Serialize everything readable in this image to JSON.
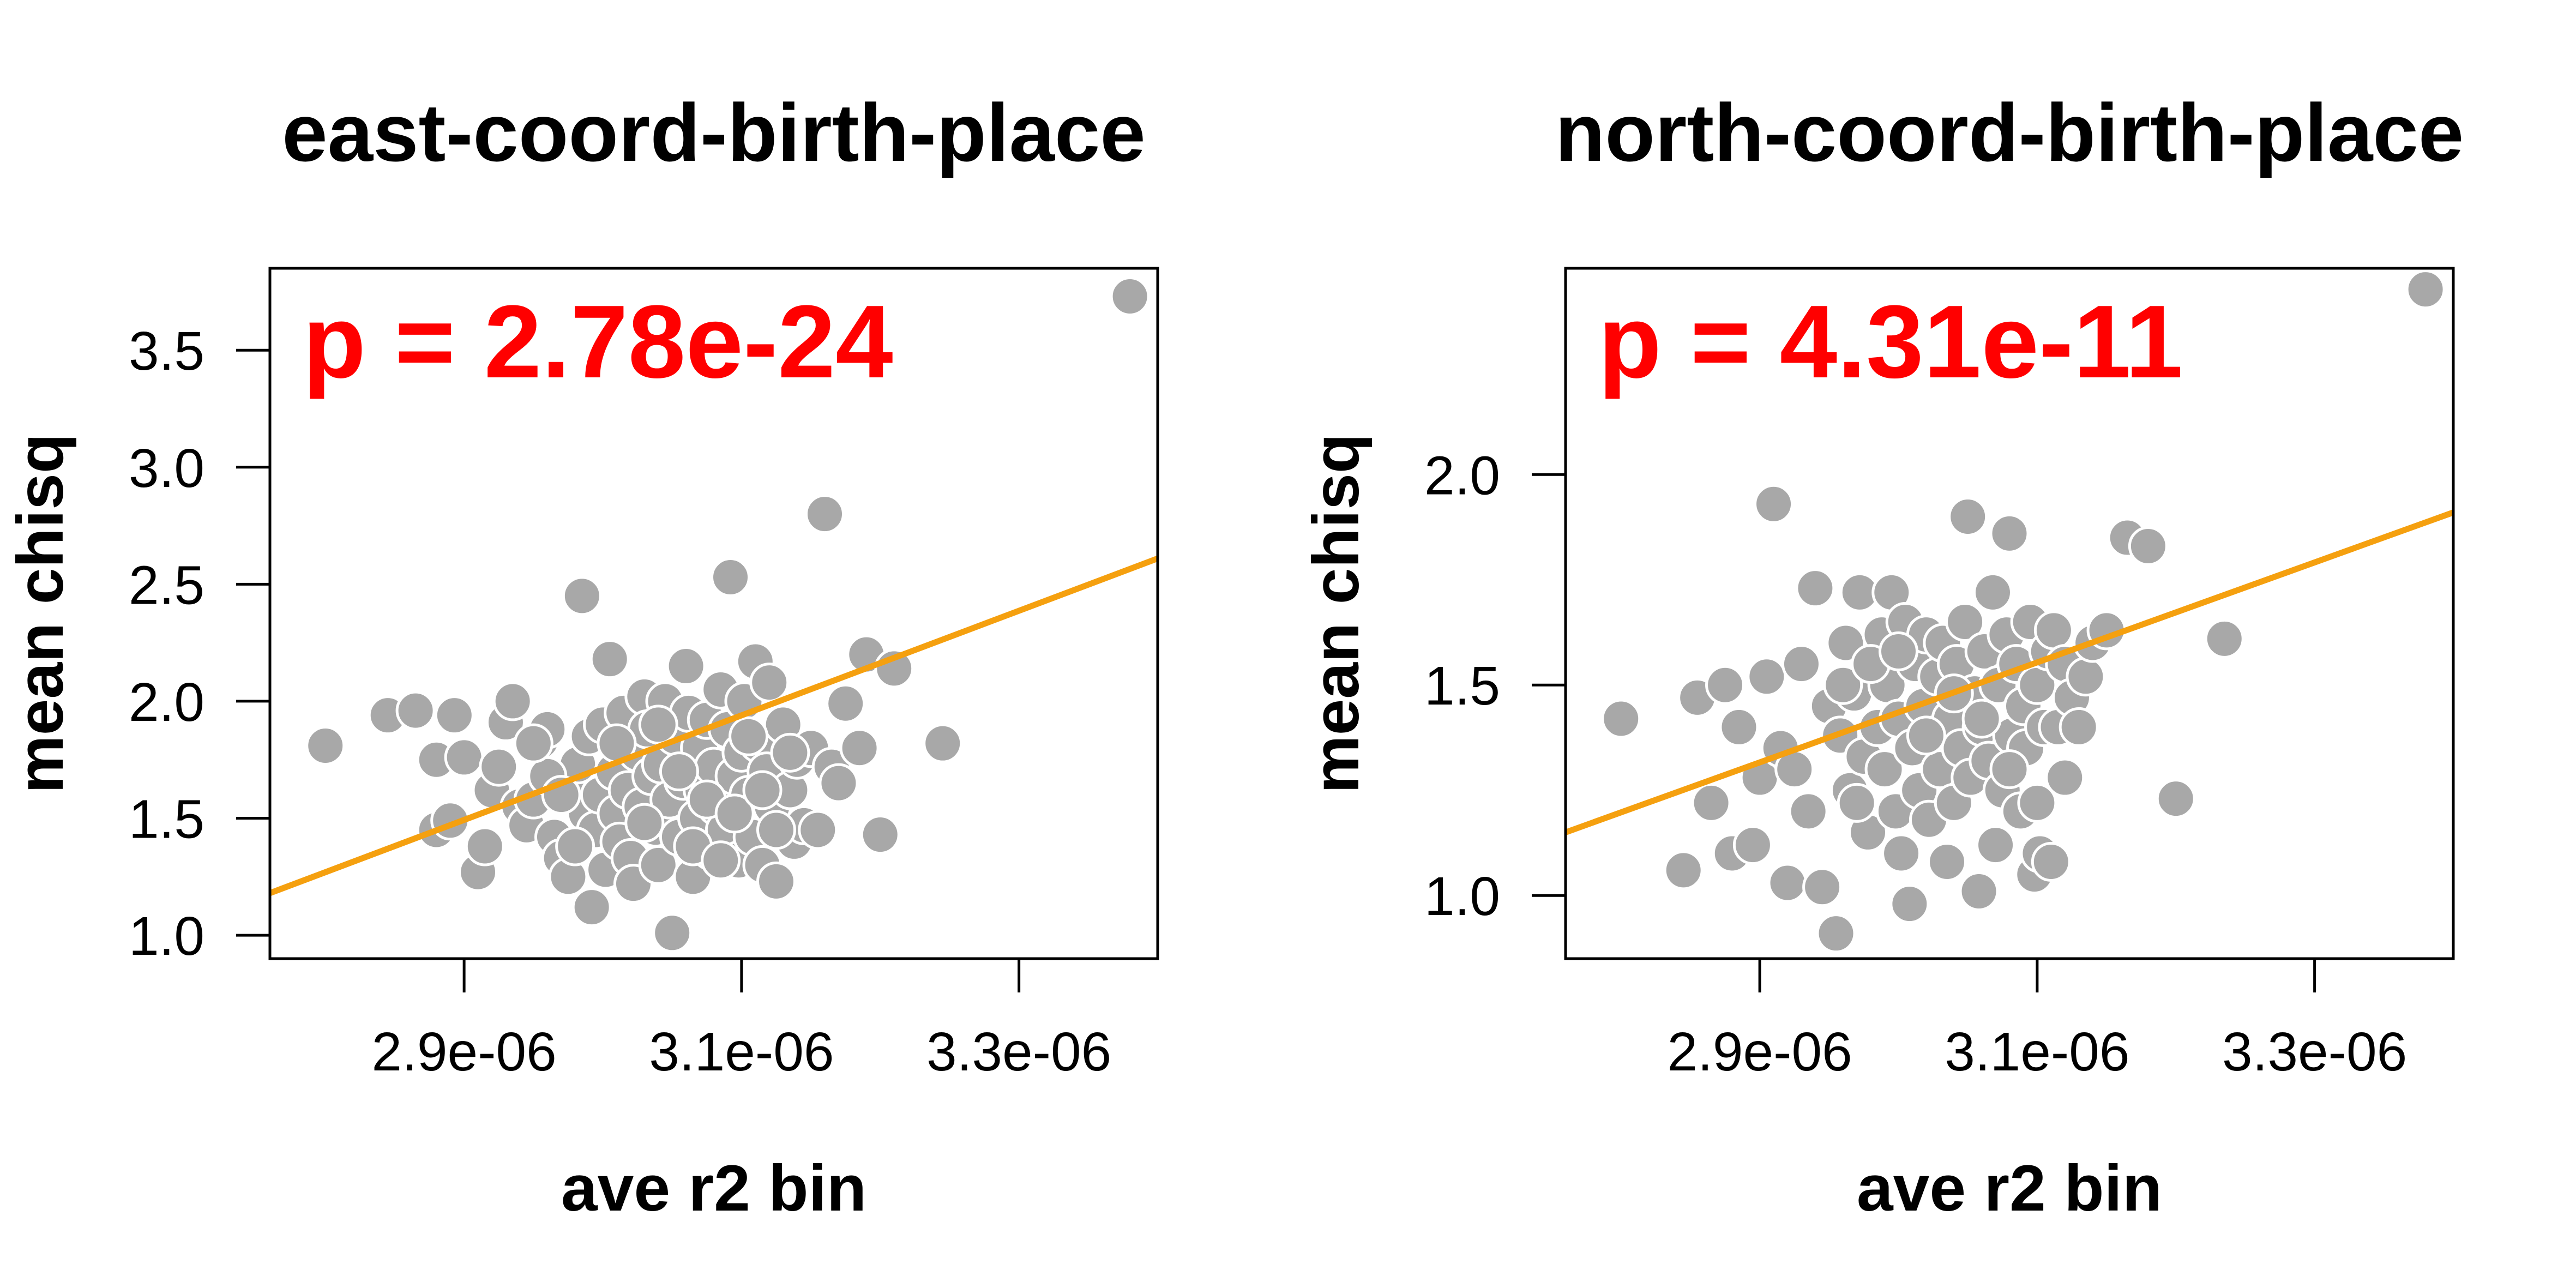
{
  "colors": {
    "points": "#a8a8a8",
    "fit_line": "#f5a00f",
    "p_value": "#ff0000"
  },
  "chart_data": [
    {
      "type": "scatter",
      "title": "east-coord-birth-place",
      "xlabel": "ave r2 bin",
      "ylabel": "mean chisq",
      "annotation": "p = 2.78e-24",
      "xlim": [
        2.76e-06,
        3.4e-06
      ],
      "ylim": [
        0.9,
        3.85
      ],
      "xticks": [
        2.9e-06,
        3.1e-06,
        3.3e-06
      ],
      "xtick_labels": [
        "2.9e-06",
        "3.1e-06",
        "3.3e-06"
      ],
      "yticks": [
        1.0,
        1.5,
        2.0,
        2.5,
        3.0,
        3.5
      ],
      "ytick_labels": [
        "1.0",
        "1.5",
        "2.0",
        "2.5",
        "3.0",
        "3.5"
      ],
      "grid": false,
      "fit_line": {
        "x": [
          2.76e-06,
          3.4e-06
        ],
        "y": [
          1.18,
          2.61
        ]
      },
      "points": [
        [
          2.8e-06,
          1.81
        ],
        [
          2.845e-06,
          1.94
        ],
        [
          2.865e-06,
          1.96
        ],
        [
          2.88e-06,
          1.75
        ],
        [
          2.893e-06,
          1.94
        ],
        [
          2.9e-06,
          1.76
        ],
        [
          2.88e-06,
          1.45
        ],
        [
          2.89e-06,
          1.49
        ],
        [
          2.91e-06,
          1.27
        ],
        [
          2.915e-06,
          1.38
        ],
        [
          2.92e-06,
          1.62
        ],
        [
          2.925e-06,
          1.72
        ],
        [
          2.93e-06,
          1.91
        ],
        [
          2.935e-06,
          2.0
        ],
        [
          2.94e-06,
          1.55
        ],
        [
          2.945e-06,
          1.47
        ],
        [
          2.95e-06,
          1.58
        ],
        [
          2.955e-06,
          1.83
        ],
        [
          2.96e-06,
          1.88
        ],
        [
          2.965e-06,
          1.42
        ],
        [
          2.97e-06,
          1.33
        ],
        [
          2.975e-06,
          1.25
        ],
        [
          2.978e-06,
          1.66
        ],
        [
          2.982e-06,
          1.73
        ],
        [
          2.985e-06,
          2.45
        ],
        [
          2.988e-06,
          1.52
        ],
        [
          2.99e-06,
          1.85
        ],
        [
          2.992e-06,
          1.12
        ],
        [
          2.995e-06,
          1.45
        ],
        [
          2.998e-06,
          1.6
        ],
        [
          3e-06,
          1.9
        ],
        [
          3.002e-06,
          1.28
        ],
        [
          3.005e-06,
          2.18
        ],
        [
          3.008e-06,
          1.7
        ],
        [
          3.01e-06,
          1.52
        ],
        [
          3.012e-06,
          1.4
        ],
        [
          3.015e-06,
          1.95
        ],
        [
          3.018e-06,
          1.62
        ],
        [
          3.02e-06,
          1.33
        ],
        [
          3.022e-06,
          1.22
        ],
        [
          3.025e-06,
          1.78
        ],
        [
          3.028e-06,
          1.55
        ],
        [
          3.03e-06,
          2.02
        ],
        [
          3.032e-06,
          1.88
        ],
        [
          3.035e-06,
          1.68
        ],
        [
          3.038e-06,
          1.46
        ],
        [
          3.04e-06,
          1.3
        ],
        [
          3.042e-06,
          1.73
        ],
        [
          3.045e-06,
          2.0
        ],
        [
          3.048e-06,
          1.58
        ],
        [
          3.05e-06,
          1.01
        ],
        [
          3.052e-06,
          1.85
        ],
        [
          3.055e-06,
          1.42
        ],
        [
          3.058e-06,
          1.66
        ],
        [
          3.06e-06,
          2.15
        ],
        [
          3.062e-06,
          1.95
        ],
        [
          3.065e-06,
          1.25
        ],
        [
          3.068e-06,
          1.5
        ],
        [
          3.07e-06,
          1.8
        ],
        [
          3.072e-06,
          1.62
        ],
        [
          3.075e-06,
          1.92
        ],
        [
          3.078e-06,
          1.36
        ],
        [
          3.08e-06,
          1.72
        ],
        [
          3.082e-06,
          1.55
        ],
        [
          3.085e-06,
          2.05
        ],
        [
          3.088e-06,
          1.45
        ],
        [
          3.09e-06,
          1.88
        ],
        [
          3.092e-06,
          2.53
        ],
        [
          3.095e-06,
          1.68
        ],
        [
          3.098e-06,
          1.32
        ],
        [
          3.1e-06,
          1.78
        ],
        [
          3.102e-06,
          2.0
        ],
        [
          3.105e-06,
          1.6
        ],
        [
          3.108e-06,
          1.42
        ],
        [
          3.11e-06,
          2.17
        ],
        [
          3.112e-06,
          1.82
        ],
        [
          3.115e-06,
          1.3
        ],
        [
          3.118e-06,
          1.7
        ],
        [
          3.12e-06,
          2.08
        ],
        [
          3.122e-06,
          1.55
        ],
        [
          3.125e-06,
          1.23
        ],
        [
          3.13e-06,
          1.9
        ],
        [
          3.135e-06,
          1.62
        ],
        [
          3.138e-06,
          1.4
        ],
        [
          3.14e-06,
          1.75
        ],
        [
          3.145e-06,
          1.47
        ],
        [
          3.15e-06,
          1.8
        ],
        [
          3.155e-06,
          1.45
        ],
        [
          3.16e-06,
          2.8
        ],
        [
          3.165e-06,
          1.72
        ],
        [
          3.17e-06,
          1.65
        ],
        [
          3.175e-06,
          1.99
        ],
        [
          3.185e-06,
          1.8
        ],
        [
          3.19e-06,
          2.2
        ],
        [
          3.2e-06,
          1.43
        ],
        [
          3.21e-06,
          2.14
        ],
        [
          3.245e-06,
          1.82
        ],
        [
          3.38e-06,
          3.73
        ],
        [
          2.96e-06,
          1.68
        ],
        [
          2.98e-06,
          1.38
        ],
        [
          3.01e-06,
          1.82
        ],
        [
          3.03e-06,
          1.48
        ],
        [
          3.04e-06,
          1.9
        ],
        [
          3.055e-06,
          1.7
        ],
        [
          3.065e-06,
          1.38
        ],
        [
          3.075e-06,
          1.58
        ],
        [
          3.085e-06,
          1.32
        ],
        [
          3.095e-06,
          1.52
        ],
        [
          3.105e-06,
          1.85
        ],
        [
          3.115e-06,
          1.62
        ],
        [
          3.125e-06,
          1.45
        ],
        [
          3.135e-06,
          1.78
        ],
        [
          2.95e-06,
          1.82
        ],
        [
          2.97e-06,
          1.6
        ]
      ]
    },
    {
      "type": "scatter",
      "title": "north-coord-birth-place",
      "xlabel": "ave r2 bin",
      "ylabel": "mean chisq",
      "annotation": "p = 4.31e-11",
      "xlim": [
        2.76e-06,
        3.4e-06
      ],
      "ylim": [
        0.85,
        2.49
      ],
      "xticks": [
        2.9e-06,
        3.1e-06,
        3.3e-06
      ],
      "xtick_labels": [
        "2.9e-06",
        "3.1e-06",
        "3.3e-06"
      ],
      "yticks": [
        1.0,
        1.5,
        2.0
      ],
      "ytick_labels": [
        "1.0",
        "1.5",
        "2.0"
      ],
      "grid": false,
      "fit_line": {
        "x": [
          2.76e-06,
          3.4e-06
        ],
        "y": [
          1.15,
          1.91
        ]
      },
      "points": [
        [
          2.8e-06,
          1.42
        ],
        [
          2.845e-06,
          1.06
        ],
        [
          2.855e-06,
          1.47
        ],
        [
          2.865e-06,
          1.22
        ],
        [
          2.875e-06,
          1.5
        ],
        [
          2.88e-06,
          1.1
        ],
        [
          2.885e-06,
          1.4
        ],
        [
          2.895e-06,
          1.12
        ],
        [
          2.9e-06,
          1.28
        ],
        [
          2.905e-06,
          1.52
        ],
        [
          2.91e-06,
          1.93
        ],
        [
          2.915e-06,
          1.35
        ],
        [
          2.92e-06,
          1.03
        ],
        [
          2.925e-06,
          1.3
        ],
        [
          2.93e-06,
          1.55
        ],
        [
          2.935e-06,
          1.2
        ],
        [
          2.94e-06,
          1.73
        ],
        [
          2.945e-06,
          1.02
        ],
        [
          2.95e-06,
          1.45
        ],
        [
          2.955e-06,
          0.91
        ],
        [
          2.958e-06,
          1.38
        ],
        [
          2.962e-06,
          1.6
        ],
        [
          2.965e-06,
          1.25
        ],
        [
          2.968e-06,
          1.48
        ],
        [
          2.972e-06,
          1.72
        ],
        [
          2.975e-06,
          1.33
        ],
        [
          2.978e-06,
          1.15
        ],
        [
          2.982e-06,
          1.55
        ],
        [
          2.985e-06,
          1.4
        ],
        [
          2.988e-06,
          1.62
        ],
        [
          2.99e-06,
          1.3
        ],
        [
          2.992e-06,
          1.5
        ],
        [
          2.995e-06,
          1.72
        ],
        [
          2.998e-06,
          1.2
        ],
        [
          3e-06,
          1.42
        ],
        [
          3.002e-06,
          1.1
        ],
        [
          3.005e-06,
          1.65
        ],
        [
          3.008e-06,
          0.98
        ],
        [
          3.01e-06,
          1.35
        ],
        [
          3.012e-06,
          1.55
        ],
        [
          3.015e-06,
          1.25
        ],
        [
          3.018e-06,
          1.45
        ],
        [
          3.02e-06,
          1.62
        ],
        [
          3.022e-06,
          1.18
        ],
        [
          3.025e-06,
          1.38
        ],
        [
          3.028e-06,
          1.52
        ],
        [
          3.03e-06,
          1.3
        ],
        [
          3.032e-06,
          1.6
        ],
        [
          3.035e-06,
          1.08
        ],
        [
          3.038e-06,
          1.42
        ],
        [
          3.04e-06,
          1.22
        ],
        [
          3.042e-06,
          1.55
        ],
        [
          3.045e-06,
          1.35
        ],
        [
          3.048e-06,
          1.65
        ],
        [
          3.05e-06,
          1.9
        ],
        [
          3.052e-06,
          1.28
        ],
        [
          3.055e-06,
          1.48
        ],
        [
          3.058e-06,
          1.01
        ],
        [
          3.06e-06,
          1.4
        ],
        [
          3.062e-06,
          1.58
        ],
        [
          3.065e-06,
          1.32
        ],
        [
          3.068e-06,
          1.72
        ],
        [
          3.07e-06,
          1.12
        ],
        [
          3.072e-06,
          1.5
        ],
        [
          3.075e-06,
          1.25
        ],
        [
          3.078e-06,
          1.62
        ],
        [
          3.08e-06,
          1.86
        ],
        [
          3.082e-06,
          1.38
        ],
        [
          3.085e-06,
          1.55
        ],
        [
          3.088e-06,
          1.2
        ],
        [
          3.09e-06,
          1.45
        ],
        [
          3.092e-06,
          1.35
        ],
        [
          3.095e-06,
          1.65
        ],
        [
          3.098e-06,
          1.05
        ],
        [
          3.1e-06,
          1.5
        ],
        [
          3.102e-06,
          1.1
        ],
        [
          3.105e-06,
          1.4
        ],
        [
          3.108e-06,
          1.58
        ],
        [
          3.11e-06,
          1.08
        ],
        [
          3.112e-06,
          1.63
        ],
        [
          3.115e-06,
          1.4
        ],
        [
          3.12e-06,
          1.55
        ],
        [
          3.125e-06,
          1.47
        ],
        [
          3.13e-06,
          1.4
        ],
        [
          3.135e-06,
          1.52
        ],
        [
          3.14e-06,
          1.6
        ],
        [
          3.15e-06,
          1.63
        ],
        [
          3.165e-06,
          1.85
        ],
        [
          3.18e-06,
          1.83
        ],
        [
          3.2e-06,
          1.23
        ],
        [
          3.235e-06,
          1.61
        ],
        [
          3.38e-06,
          2.44
        ],
        [
          2.96e-06,
          1.5
        ],
        [
          2.98e-06,
          1.55
        ],
        [
          3e-06,
          1.58
        ],
        [
          3.02e-06,
          1.38
        ],
        [
          3.04e-06,
          1.48
        ],
        [
          3.06e-06,
          1.42
        ],
        [
          3.08e-06,
          1.3
        ],
        [
          3.1e-06,
          1.22
        ],
        [
          3.12e-06,
          1.28
        ],
        [
          2.97e-06,
          1.22
        ]
      ]
    }
  ]
}
